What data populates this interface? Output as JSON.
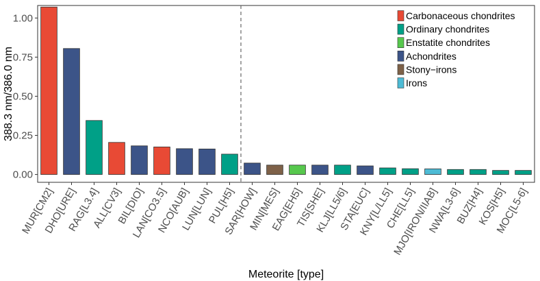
{
  "chart_data": {
    "type": "bar",
    "title": "",
    "xlabel": "Meteorite [type]",
    "ylabel": "388.3 nm/386.0 nm",
    "ylim": [
      -0.05,
      1.08
    ],
    "yticks": [
      0.0,
      0.25,
      0.5,
      0.75,
      1.0
    ],
    "ytick_labels": [
      "0.00",
      "0.25",
      "0.50",
      "0.75",
      "1.00"
    ],
    "grid": false,
    "legend_position": "top-right",
    "reference_line": {
      "after_category": "PUL[H5]",
      "style": "dashed"
    },
    "categories": [
      "MUR[CM2]",
      "DHO[URE]",
      "RAG[L3.4]",
      "ALL[CV3]",
      "BIL[DIO]",
      "LAN[CO3.5]",
      "NCO[AUB]",
      "LUN[LUN]",
      "PUL[H5]",
      "SAR[HOW]",
      "MIN[MES]",
      "EAG[EH5]",
      "TIS[SHE]",
      "KLJ[LL5/6]",
      "STA[EUC]",
      "KNY[L/LL5]",
      "CHE[LL5]",
      "MJO[IRON/IIAB]",
      "NWA[L3-6]",
      "BUZ[H4]",
      "KOS[H5]",
      "MOC[L5-6]"
    ],
    "values": [
      1.07,
      0.805,
      0.345,
      0.205,
      0.183,
      0.176,
      0.165,
      0.163,
      0.13,
      0.073,
      0.06,
      0.06,
      0.06,
      0.06,
      0.055,
      0.042,
      0.037,
      0.036,
      0.032,
      0.032,
      0.026,
      0.026
    ],
    "groups": [
      "Carbonaceous chondrites",
      "Achondrites",
      "Ordinary chondrites",
      "Carbonaceous chondrites",
      "Achondrites",
      "Carbonaceous chondrites",
      "Achondrites",
      "Achondrites",
      "Ordinary chondrites",
      "Achondrites",
      "Stony-irons",
      "Enstatite chondrites",
      "Achondrites",
      "Ordinary chondrites",
      "Achondrites",
      "Ordinary chondrites",
      "Ordinary chondrites",
      "Irons",
      "Ordinary chondrites",
      "Ordinary chondrites",
      "Ordinary chondrites",
      "Ordinary chondrites"
    ],
    "legend": [
      {
        "label": "Carbonaceous chondrites",
        "color": "#e84a35"
      },
      {
        "label": "Ordinary chondrites",
        "color": "#00a087"
      },
      {
        "label": "Enstatite chondrites",
        "color": "#57c84d"
      },
      {
        "label": "Achondrites",
        "color": "#3c5488"
      },
      {
        "label": "Stony−irons",
        "color": "#7e6148"
      },
      {
        "label": "Irons",
        "color": "#4dbbd5"
      }
    ]
  }
}
